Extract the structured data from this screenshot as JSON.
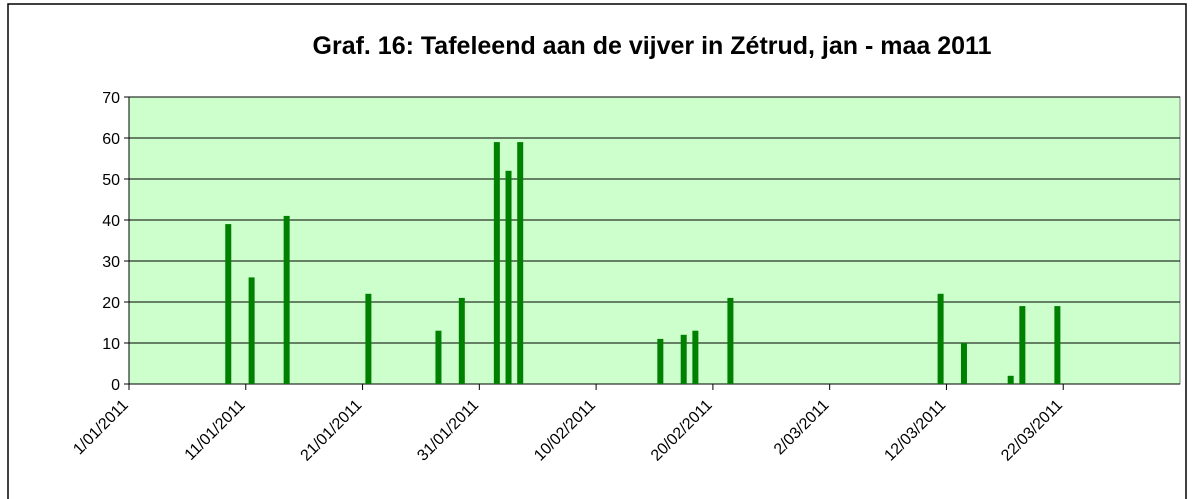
{
  "chart_data": {
    "type": "bar",
    "title": "Graf. 16: Tafeleend aan de vijver in Zétrud, jan - maa 2011",
    "x": [
      "2011-01-09",
      "2011-01-11",
      "2011-01-14",
      "2011-01-21",
      "2011-01-27",
      "2011-01-29",
      "2011-02-01",
      "2011-02-02",
      "2011-02-03",
      "2011-02-15",
      "2011-02-17",
      "2011-02-18",
      "2011-02-21",
      "2011-03-11",
      "2011-03-13",
      "2011-03-17",
      "2011-03-18",
      "2011-03-21"
    ],
    "values": [
      39,
      26,
      41,
      22,
      13,
      21,
      59,
      52,
      59,
      11,
      12,
      13,
      21,
      22,
      10,
      2,
      19,
      19
    ],
    "color": "#008000",
    "xlim": [
      "2011-01-01",
      "2011-04-01"
    ],
    "xticks": [
      {
        "value": "2011-01-01",
        "label": "1/01/2011"
      },
      {
        "value": "2011-01-11",
        "label": "11/01/2011"
      },
      {
        "value": "2011-01-21",
        "label": "21/01/2011"
      },
      {
        "value": "2011-01-31",
        "label": "31/01/2011"
      },
      {
        "value": "2011-02-10",
        "label": "10/02/2011"
      },
      {
        "value": "2011-02-20",
        "label": "20/02/2011"
      },
      {
        "value": "2011-03-02",
        "label": "2/03/2011"
      },
      {
        "value": "2011-03-12",
        "label": "12/03/2011"
      },
      {
        "value": "2011-03-22",
        "label": "22/03/2011"
      }
    ],
    "ylim": [
      0,
      70
    ],
    "yticks": [
      0,
      10,
      20,
      30,
      40,
      50,
      60,
      70
    ],
    "grid": true
  }
}
